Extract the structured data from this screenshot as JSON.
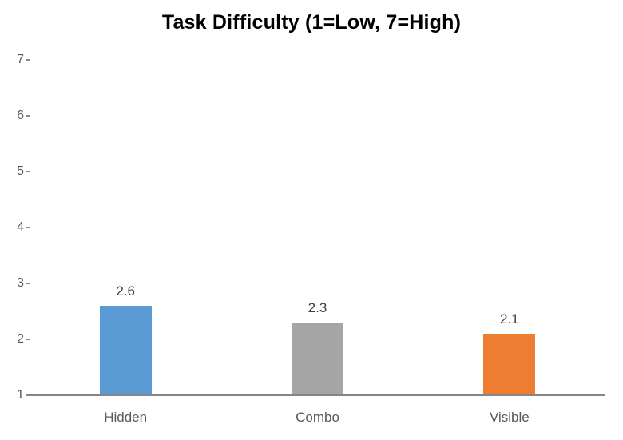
{
  "chart_data": {
    "type": "bar",
    "title": "Task Difficulty (1=Low, 7=High)",
    "categories": [
      "Hidden",
      "Combo",
      "Visible"
    ],
    "values": [
      2.6,
      2.3,
      2.1
    ],
    "data_labels": [
      "2.6",
      "2.3",
      "2.1"
    ],
    "bar_colors": [
      "#5B9BD5",
      "#A5A5A5",
      "#ED7D31"
    ],
    "xlabel": "",
    "ylabel": "",
    "ylim": [
      1,
      7
    ],
    "yticks": [
      1,
      2,
      3,
      4,
      5,
      6,
      7
    ],
    "grid": false,
    "legend": false,
    "colors": {
      "title": "#000000",
      "axis": "#868686",
      "tick_labels": "#595959",
      "category_labels": "#595959",
      "data_labels": "#404040",
      "background": "#ffffff"
    }
  }
}
